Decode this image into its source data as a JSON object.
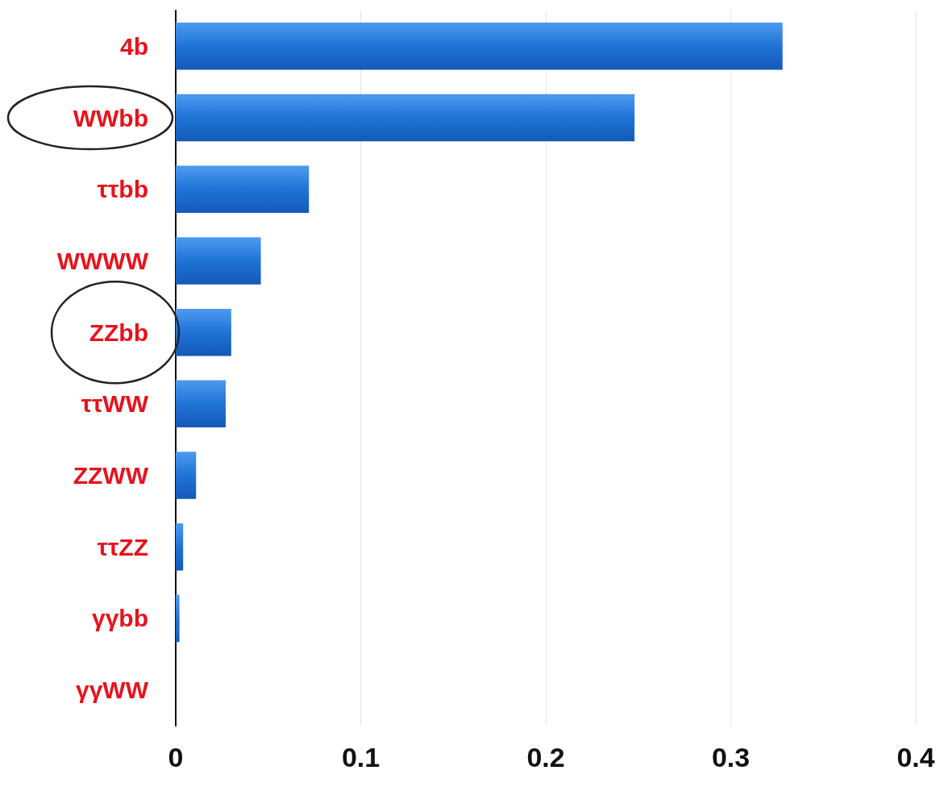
{
  "chart_data": {
    "type": "bar",
    "orientation": "horizontal",
    "categories": [
      "4b",
      "WWbb",
      "ττbb",
      "WWWW",
      "ZZbb",
      "ττWW",
      "ZZWW",
      "ττZZ",
      "γγbb",
      "γγWW"
    ],
    "values": [
      0.328,
      0.248,
      0.072,
      0.046,
      0.03,
      0.027,
      0.011,
      0.004,
      0.002,
      0
    ],
    "color": "#1f73d6",
    "xlim": [
      0,
      0.4
    ],
    "xticks": [
      0,
      0.1,
      0.2,
      0.3,
      0.4
    ],
    "grid": "x"
  }
}
